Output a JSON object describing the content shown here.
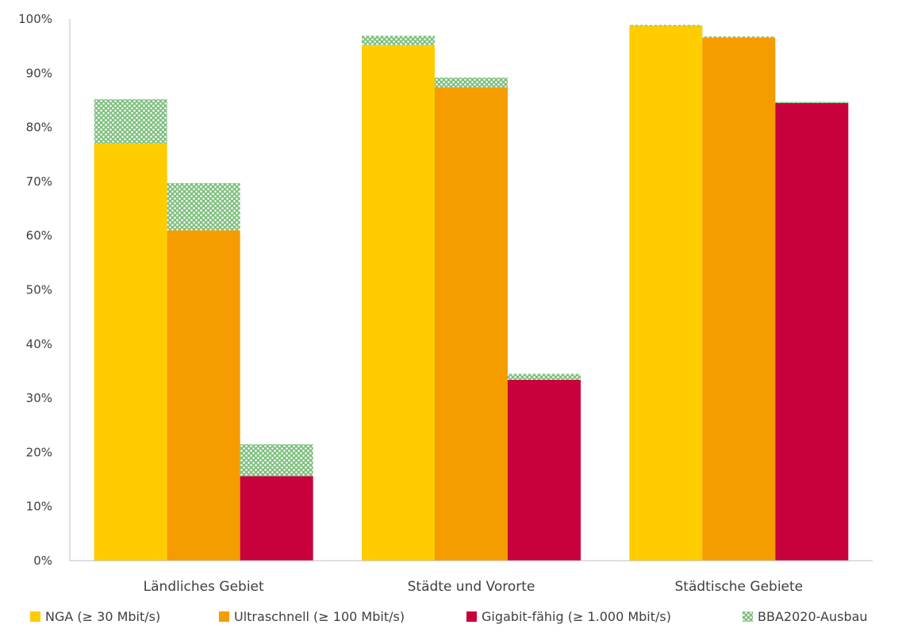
{
  "chart_data": {
    "type": "bar",
    "stacked": true,
    "title": "",
    "xlabel": "",
    "ylabel": "",
    "categories": [
      "Ländliches Gebiet",
      "Städte und Vororte",
      "Städtische Gebiete"
    ],
    "ylim": [
      0,
      100
    ],
    "yticks": [
      "0%",
      "10%",
      "20%",
      "30%",
      "40%",
      "50%",
      "60%",
      "70%",
      "80%",
      "90%",
      "100%"
    ],
    "grid": false,
    "legend_position": "bottom",
    "series": [
      {
        "name": "NGA (≥ 30 Mbit/s)",
        "color": "#ffcc00",
        "base": [
          77,
          95.2,
          98.7
        ],
        "bba2020": [
          8.2,
          1.7,
          0.2
        ]
      },
      {
        "name": "Ultraschnell (≥ 100 Mbit/s)",
        "color": "#f59c00",
        "base": [
          61,
          87.4,
          96.6
        ],
        "bba2020": [
          8.7,
          1.8,
          0.2
        ]
      },
      {
        "name": "Gigabit-fähig (≥ 1.000 Mbit/s)",
        "color": "#c8003c",
        "base": [
          15.6,
          33.4,
          84.5
        ],
        "bba2020": [
          5.9,
          1.1,
          0.2
        ]
      }
    ],
    "overlay_series": {
      "name": "BBA2020-Ausbau",
      "color": "#5aab5a",
      "pattern": "checkered"
    }
  }
}
